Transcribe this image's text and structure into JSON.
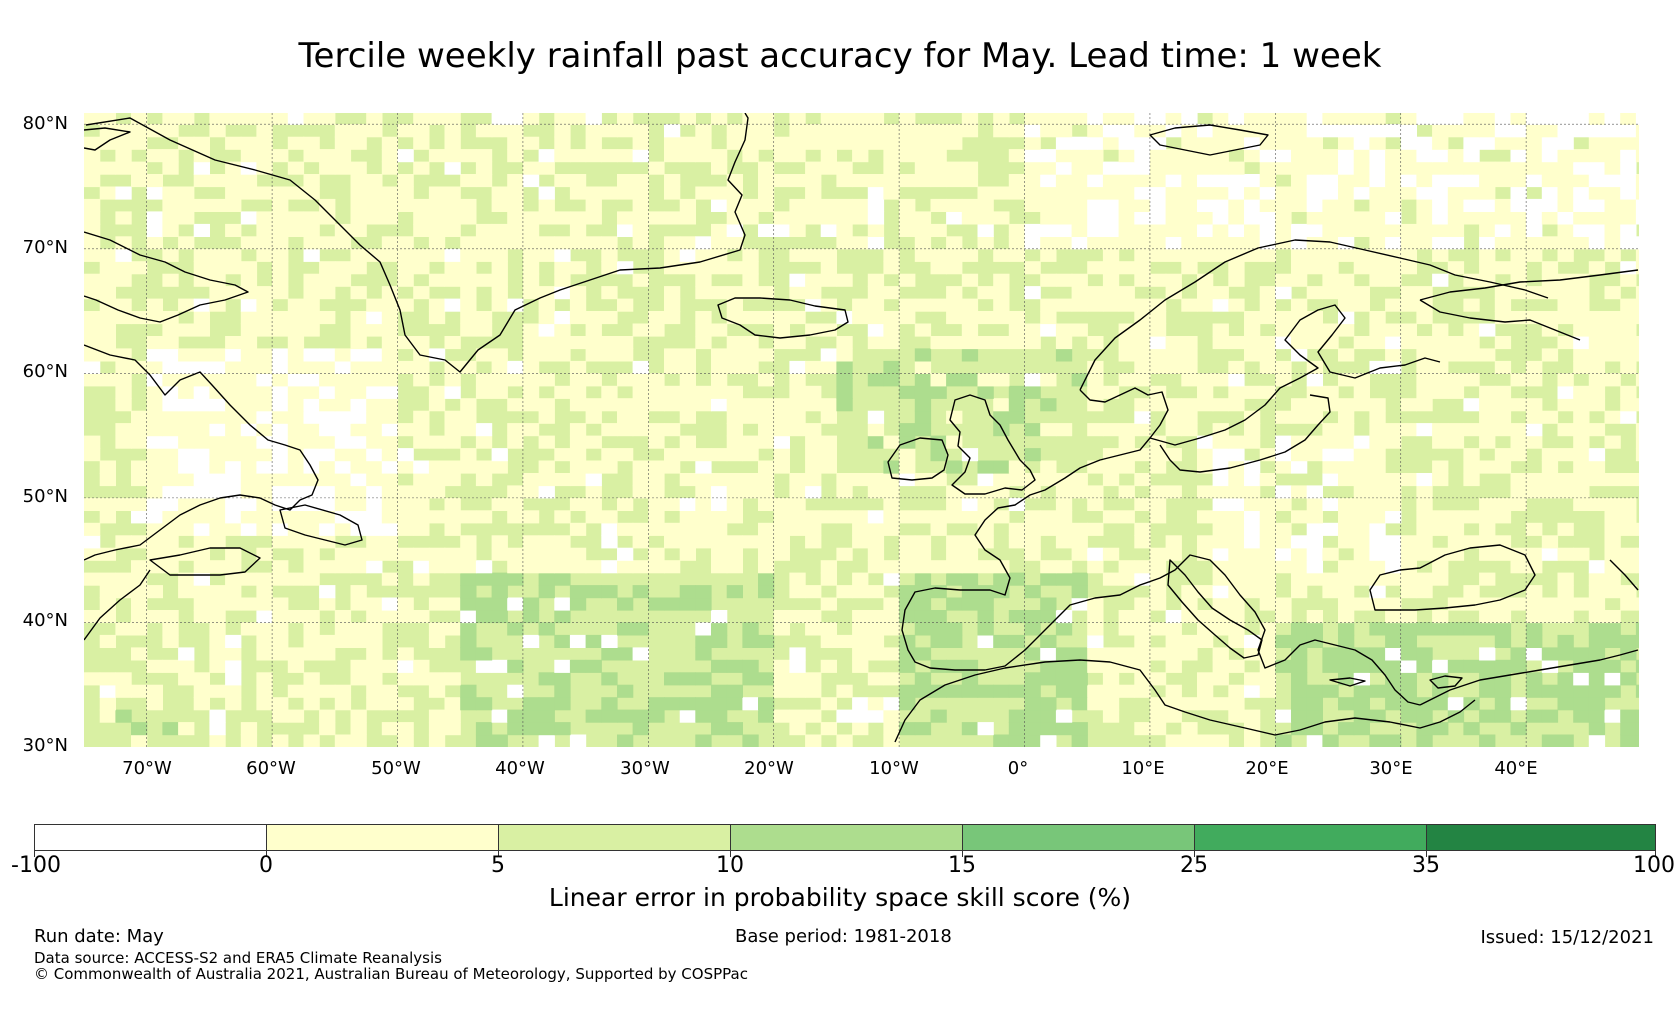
{
  "title": "Tercile weekly rainfall past accuracy for May. Lead time: 1 week",
  "map": {
    "lat_labels": [
      "80°N",
      "70°N",
      "60°N",
      "50°N",
      "40°N",
      "30°N"
    ],
    "lon_labels": [
      "70°W",
      "60°W",
      "50°W",
      "40°W",
      "30°W",
      "20°W",
      "10°W",
      "0°",
      "10°E",
      "20°E",
      "30°E",
      "40°E"
    ],
    "colors": {
      "negative": "#ffffff",
      "c0_5": "#ffffcc",
      "c5_10": "#d9f0a3",
      "c10_15": "#addd8e",
      "c15_25": "#78c679",
      "c25_35": "#41ab5d",
      "c35_100": "#238443",
      "coast": "#000000",
      "grid": "#555555"
    }
  },
  "colorbar": {
    "title": "Linear error in probability space skill score (%)",
    "tick_labels": [
      "-100",
      "0",
      "5",
      "10",
      "15",
      "25",
      "35",
      "100"
    ],
    "bins": [
      {
        "range": "-100 to 0",
        "color": "#ffffff"
      },
      {
        "range": "0 to 5",
        "color": "#ffffcc"
      },
      {
        "range": "5 to 10",
        "color": "#d9f0a3"
      },
      {
        "range": "10 to 15",
        "color": "#addd8e"
      },
      {
        "range": "15 to 25",
        "color": "#78c679"
      },
      {
        "range": "25 to 35",
        "color": "#41ab5d"
      },
      {
        "range": "35 to 100",
        "color": "#238443"
      }
    ]
  },
  "footer": {
    "run_date": "Run date: May",
    "base_period": "Base period: 1981-2018",
    "issued": "Issued: 15/12/2021",
    "data_source": "Data source: ACCESS-S2 and ERA5 Climate Reanalysis",
    "copyright": "© Commonwealth of Australia 2021, Australian Bureau of Meteorology, Supported by COSPPac"
  }
}
